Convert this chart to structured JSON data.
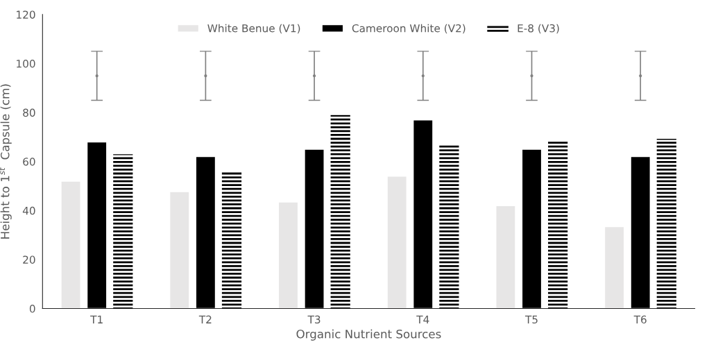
{
  "chart_data": {
    "type": "bar",
    "xlabel": "Organic Nutrient Sources",
    "ylabel": "Height to 1$^{st}$  Capsule (cm)",
    "categories": [
      "T1",
      "T2",
      "T3",
      "T4",
      "T5",
      "T6"
    ],
    "series": [
      {
        "name": "White Benue (V1)",
        "color": "#e7e6e6",
        "values": [
          52,
          47.7,
          43.5,
          54,
          42,
          33.4
        ]
      },
      {
        "name": "Cameroon White (V2)",
        "color": "#000000",
        "values": [
          68,
          62,
          65,
          77,
          65,
          62
        ]
      },
      {
        "name": "E-8 (V3)",
        "color": "#000000",
        "values": [
          63,
          56,
          79,
          67,
          68.7,
          69.3
        ]
      },
      {
        "type": "scatter",
        "marker": "none",
        "color": "#808080",
        "x": [
          "T1",
          "T2",
          "T3",
          "T4",
          "T5",
          "T6"
        ],
        "values": [
          95,
          95,
          95,
          95,
          95,
          95
        ],
        "errors": [
          10,
          10,
          10,
          10,
          10,
          10
        ]
      }
    ],
    "ylim": [
      0,
      120
    ],
    "yticks": [
      0,
      20,
      40,
      60,
      80,
      100,
      120
    ],
    "grid": false,
    "legend": "top"
  }
}
